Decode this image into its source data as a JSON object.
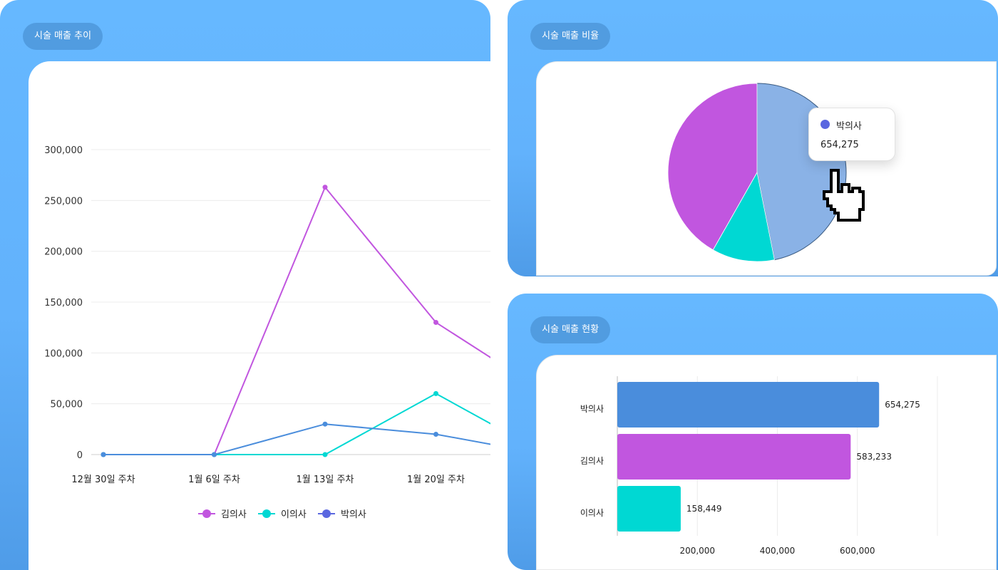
{
  "panels": {
    "trend": {
      "title": "시술 매출 추이"
    },
    "ratio": {
      "title": "시술 매출 비율"
    },
    "status": {
      "title": "시술 매출 현황"
    }
  },
  "colors": {
    "kim": "#c156df",
    "lee": "#00d8d3",
    "park": "#4a8ddc",
    "park_legend": "#5a67e0",
    "park_pie": "#8ab2e6"
  },
  "tooltip": {
    "name": "박의사",
    "value": "654,275"
  },
  "chart_data": [
    {
      "type": "line",
      "title": "시술 매출 추이",
      "categories": [
        "12월 30일 주차",
        "1월 6일 주차",
        "1월 13일 주차",
        "1월 20일 주차",
        ""
      ],
      "yticks": [
        0,
        50000,
        100000,
        150000,
        200000,
        250000,
        300000
      ],
      "ytick_labels": [
        "0",
        "50,000",
        "100,000",
        "150,000",
        "200,000",
        "250,000",
        "300,000"
      ],
      "ylim": [
        0,
        300000
      ],
      "series": [
        {
          "name": "김의사",
          "values": [
            0,
            0,
            263000,
            130000,
            60000
          ]
        },
        {
          "name": "이의사",
          "values": [
            0,
            0,
            0,
            60000,
            0
          ]
        },
        {
          "name": "박의사",
          "values": [
            0,
            0,
            30000,
            20000,
            0
          ]
        }
      ],
      "legend": "bottom"
    },
    {
      "type": "pie",
      "title": "시술 매출 비율",
      "labels": [
        "박의사",
        "이의사",
        "김의사"
      ],
      "values": [
        654275,
        158449,
        583233
      ]
    },
    {
      "type": "bar",
      "orientation": "horizontal",
      "title": "시술 매출 현황",
      "categories": [
        "박의사",
        "김의사",
        "이의사"
      ],
      "values": [
        654275,
        583233,
        158449
      ],
      "value_labels": [
        "654,275",
        "583,233",
        "158,449"
      ],
      "xticks": [
        200000,
        400000,
        600000
      ],
      "xtick_labels": [
        "200,000",
        "400,000",
        "600,000"
      ],
      "xlim": [
        0,
        800000
      ]
    }
  ]
}
